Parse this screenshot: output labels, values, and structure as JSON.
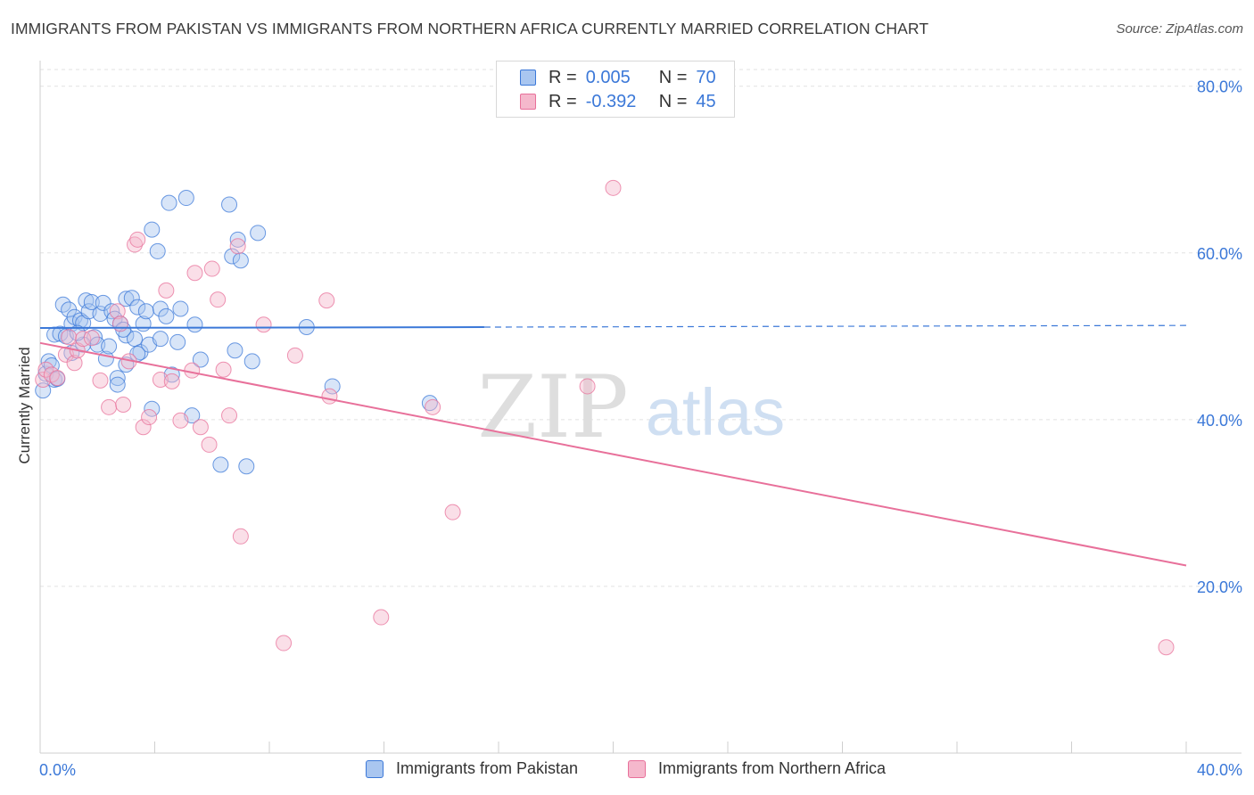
{
  "title": "IMMIGRANTS FROM PAKISTAN VS IMMIGRANTS FROM NORTHERN AFRICA CURRENTLY MARRIED CORRELATION CHART",
  "source": "Source: ZipAtlas.com",
  "watermark": {
    "zip": "ZIP",
    "atlas": "atlas"
  },
  "colors": {
    "blue": "#3b78d8",
    "blue_fill": "#a9c6f0",
    "pink": "#e8709a",
    "pink_fill": "#f5b8cc",
    "grid": "#e2e2e2"
  },
  "legend": {
    "rows": [
      {
        "r_label": "R =",
        "r_value": "0.005",
        "n_label": "N =",
        "n_value": "70",
        "color": "blue"
      },
      {
        "r_label": "R =",
        "r_value": "-0.392",
        "n_label": "N =",
        "n_value": "45",
        "color": "pink"
      }
    ]
  },
  "chart_data": {
    "type": "scatter",
    "title": "IMMIGRANTS FROM PAKISTAN VS IMMIGRANTS FROM NORTHERN AFRICA CURRENTLY MARRIED CORRELATION CHART",
    "xlabel": "",
    "ylabel": "Currently Married",
    "xlim": [
      0,
      40
    ],
    "ylim": [
      0,
      82
    ],
    "x_tick_labels": [
      "0.0%",
      "40.0%"
    ],
    "y_ticks": [
      20,
      40,
      60,
      80
    ],
    "y_tick_labels": [
      "20.0%",
      "40.0%",
      "60.0%",
      "80.0%"
    ],
    "grid": "horizontal dashed",
    "legend_position": "top-center, bottom",
    "series": [
      {
        "name": "Immigrants from Pakistan",
        "color": "blue",
        "trend": {
          "x0": 0,
          "y0": 51.0,
          "x1": 15.5,
          "y1": 51.1,
          "dashed_to_x": 40,
          "dashed_to_y": 51.3
        },
        "points": [
          [
            0.1,
            43.5
          ],
          [
            0.2,
            45.5
          ],
          [
            0.3,
            47.0
          ],
          [
            0.4,
            46.5
          ],
          [
            0.5,
            44.8
          ],
          [
            0.5,
            50.2
          ],
          [
            0.7,
            50.3
          ],
          [
            0.8,
            53.8
          ],
          [
            0.9,
            50.0
          ],
          [
            1.0,
            53.2
          ],
          [
            1.1,
            51.5
          ],
          [
            1.2,
            52.3
          ],
          [
            1.1,
            48.0
          ],
          [
            1.4,
            51.9
          ],
          [
            1.5,
            51.6
          ],
          [
            1.6,
            54.3
          ],
          [
            1.7,
            53.0
          ],
          [
            1.8,
            54.1
          ],
          [
            1.9,
            49.9
          ],
          [
            2.0,
            49.0
          ],
          [
            2.1,
            52.7
          ],
          [
            2.2,
            54.0
          ],
          [
            2.3,
            47.3
          ],
          [
            2.4,
            48.8
          ],
          [
            2.5,
            53.0
          ],
          [
            2.6,
            52.1
          ],
          [
            2.7,
            45.0
          ],
          [
            2.7,
            44.2
          ],
          [
            2.8,
            51.5
          ],
          [
            3.0,
            54.5
          ],
          [
            3.0,
            50.1
          ],
          [
            3.0,
            46.6
          ],
          [
            3.2,
            54.6
          ],
          [
            3.3,
            49.7
          ],
          [
            3.4,
            53.5
          ],
          [
            3.5,
            48.1
          ],
          [
            3.6,
            51.5
          ],
          [
            3.7,
            53.0
          ],
          [
            3.8,
            49.0
          ],
          [
            3.9,
            62.8
          ],
          [
            3.9,
            41.3
          ],
          [
            4.1,
            60.2
          ],
          [
            4.2,
            49.7
          ],
          [
            4.2,
            53.3
          ],
          [
            4.4,
            52.4
          ],
          [
            4.5,
            66.0
          ],
          [
            4.6,
            45.4
          ],
          [
            4.8,
            49.3
          ],
          [
            4.9,
            53.3
          ],
          [
            5.1,
            66.6
          ],
          [
            5.3,
            40.5
          ],
          [
            5.4,
            51.4
          ],
          [
            5.6,
            47.2
          ],
          [
            6.3,
            34.6
          ],
          [
            6.6,
            65.8
          ],
          [
            6.7,
            59.6
          ],
          [
            6.8,
            48.3
          ],
          [
            6.9,
            61.6
          ],
          [
            7.0,
            59.1
          ],
          [
            7.2,
            34.4
          ],
          [
            7.4,
            47.0
          ],
          [
            7.6,
            62.4
          ],
          [
            9.3,
            51.1
          ],
          [
            10.2,
            44.0
          ],
          [
            13.6,
            42.0
          ],
          [
            1.5,
            49.0
          ],
          [
            2.9,
            50.8
          ],
          [
            0.6,
            44.9
          ],
          [
            3.4,
            47.9
          ],
          [
            1.3,
            50.4
          ]
        ]
      },
      {
        "name": "Immigrants from Northern Africa",
        "color": "pink",
        "trend": {
          "x0": 0,
          "y0": 49.2,
          "x1": 40,
          "y1": 22.5
        },
        "points": [
          [
            0.1,
            44.8
          ],
          [
            0.2,
            46.0
          ],
          [
            0.4,
            45.4
          ],
          [
            0.6,
            45.0
          ],
          [
            0.9,
            47.8
          ],
          [
            1.0,
            49.9
          ],
          [
            1.2,
            46.8
          ],
          [
            1.3,
            48.3
          ],
          [
            1.5,
            49.7
          ],
          [
            1.8,
            49.8
          ],
          [
            2.1,
            44.7
          ],
          [
            2.4,
            41.5
          ],
          [
            2.7,
            53.0
          ],
          [
            2.8,
            51.5
          ],
          [
            2.9,
            41.8
          ],
          [
            3.1,
            47.0
          ],
          [
            3.3,
            61.0
          ],
          [
            3.4,
            61.6
          ],
          [
            3.6,
            39.1
          ],
          [
            3.8,
            40.3
          ],
          [
            4.2,
            44.8
          ],
          [
            4.4,
            55.5
          ],
          [
            4.6,
            44.6
          ],
          [
            4.9,
            39.9
          ],
          [
            5.3,
            45.9
          ],
          [
            5.4,
            57.6
          ],
          [
            5.6,
            39.1
          ],
          [
            5.9,
            37.0
          ],
          [
            6.0,
            58.1
          ],
          [
            6.2,
            54.4
          ],
          [
            6.4,
            46.0
          ],
          [
            6.6,
            40.5
          ],
          [
            6.9,
            60.8
          ],
          [
            7.0,
            26.0
          ],
          [
            7.8,
            51.4
          ],
          [
            8.5,
            13.2
          ],
          [
            8.9,
            47.7
          ],
          [
            10.0,
            54.3
          ],
          [
            10.1,
            42.8
          ],
          [
            11.9,
            16.3
          ],
          [
            13.7,
            41.5
          ],
          [
            14.4,
            28.9
          ],
          [
            19.1,
            44.0
          ],
          [
            20.0,
            67.8
          ],
          [
            39.3,
            12.7
          ]
        ]
      }
    ]
  },
  "bottom_legend": [
    {
      "label": "Immigrants from Pakistan",
      "color": "blue"
    },
    {
      "label": "Immigrants from Northern Africa",
      "color": "pink"
    }
  ]
}
